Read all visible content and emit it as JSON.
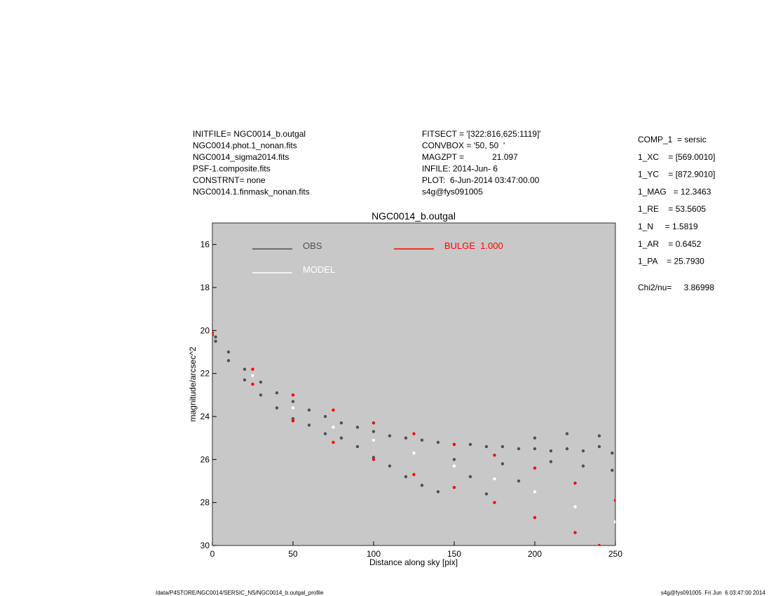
{
  "header": {
    "left": [
      "INITFILE= NGC0014_b.outgal",
      "NGC0014.phot.1_nonan.fits",
      "NGC0014_sigma2014.fits",
      "PSF-1.composite.fits",
      "CONSTRNT= none",
      "NGC0014.1.finmask_nonan.fits"
    ],
    "middle": [
      "FITSECT = '[322:816,625:1119]'",
      "CONVBOX = '50, 50  '",
      "MAGZPT =            21.097",
      "INFILE: 2014-Jun- 6",
      "PLOT:  6-Jun-2014 03:47:00.00",
      "s4g@fys091005"
    ]
  },
  "params": [
    "COMP_1  = sersic",
    "1_XC    = [569.0010]",
    "1_YC    = [872.9010]",
    "1_MAG   = 12.3463",
    "1_RE    = 53.5605",
    "1_N     = 1.5819",
    "1_AR    = 0.6452",
    "1_PA    = 25.7930"
  ],
  "chi2": {
    "label": "Chi2/nu=",
    "value": "3.86998"
  },
  "footer": {
    "left": "/data/P4STORE/NGC0014/SERSIC_NS/NGC0014_b.outgal_profile",
    "right": "s4g@fys091005  Fri Jun  6 03:47:00 2014"
  },
  "chart_data": {
    "type": "scatter",
    "title": "NGC0014_b.outgal",
    "x_label": "Distance along sky [pix]",
    "y_label": "magnitude/arcsec^2",
    "xlim": [
      0,
      250
    ],
    "xticks": [
      0,
      50,
      100,
      150,
      200,
      250
    ],
    "ylim": [
      15,
      30
    ],
    "yticks": [
      16,
      18,
      20,
      22,
      24,
      26,
      28,
      30
    ],
    "y_inverted": true,
    "background": "#c8c8c8",
    "series": [
      {
        "name": "OBS",
        "color": "#505050",
        "x": [
          2,
          2,
          10,
          10,
          20,
          20,
          30,
          30,
          40,
          40,
          50,
          50,
          60,
          60,
          70,
          70,
          80,
          80,
          90,
          90,
          100,
          100,
          110,
          110,
          120,
          120,
          130,
          130,
          140,
          140,
          150,
          150,
          160,
          160,
          170,
          170,
          180,
          180,
          190,
          190,
          200,
          200,
          210,
          210,
          220,
          220,
          230,
          230,
          240,
          240,
          248,
          248
        ],
        "values": [
          20.3,
          20.5,
          21.0,
          21.4,
          21.8,
          22.3,
          22.4,
          23.0,
          22.9,
          23.6,
          23.3,
          24.1,
          23.7,
          24.4,
          24.0,
          24.8,
          24.3,
          25.0,
          24.5,
          25.4,
          24.7,
          25.9,
          24.9,
          26.3,
          25.0,
          26.8,
          25.1,
          27.2,
          25.2,
          27.5,
          25.3,
          26.0,
          25.3,
          26.8,
          25.4,
          27.6,
          25.4,
          26.2,
          25.5,
          27.0,
          25.5,
          25.0,
          25.6,
          26.1,
          25.5,
          24.8,
          25.6,
          26.3,
          25.4,
          24.9,
          25.7,
          26.5
        ]
      },
      {
        "name": "MODEL",
        "color": "#ffffff",
        "x": [
          0,
          25,
          50,
          75,
          100,
          125,
          150,
          175,
          200,
          225,
          250
        ],
        "values": [
          20.15,
          22.1,
          23.6,
          24.5,
          25.1,
          25.7,
          26.3,
          26.9,
          27.5,
          28.2,
          28.9
        ]
      },
      {
        "name": "BULGE  1.000",
        "color": "#ff0000",
        "x": [
          0,
          25,
          50,
          75,
          100,
          125,
          150,
          175,
          200,
          225,
          250,
          0,
          25,
          50,
          75,
          100,
          125,
          150,
          175,
          200,
          225,
          240
        ],
        "values": [
          20.1,
          21.8,
          23.0,
          23.7,
          24.3,
          24.8,
          25.3,
          25.8,
          26.4,
          27.1,
          27.9,
          20.2,
          22.5,
          24.2,
          25.2,
          26.0,
          26.7,
          27.3,
          28.0,
          28.7,
          29.4,
          30.0
        ]
      }
    ]
  }
}
